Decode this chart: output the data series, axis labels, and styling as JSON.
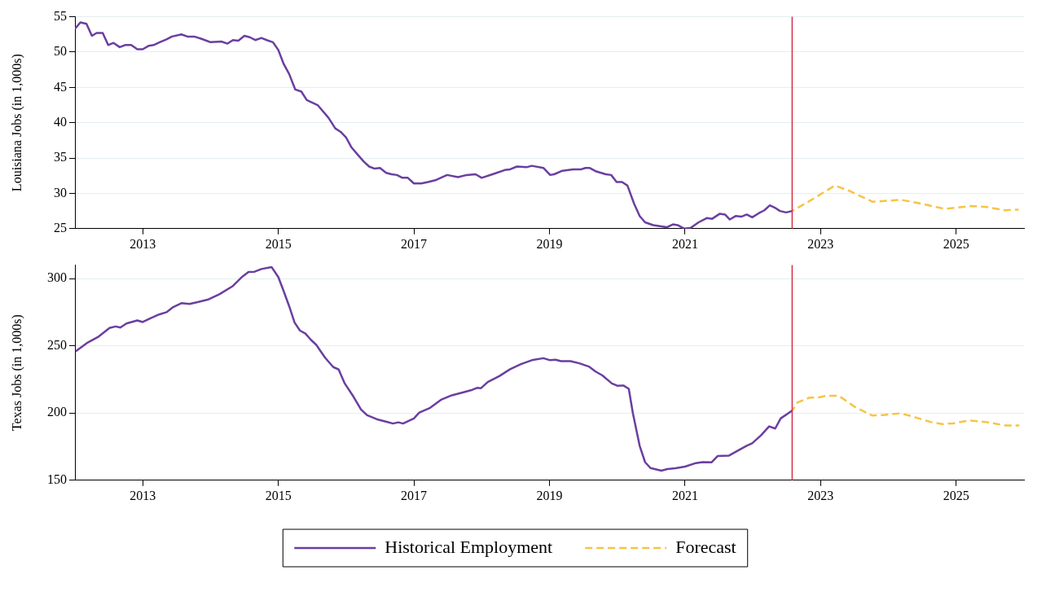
{
  "chart_data": [
    {
      "type": "line",
      "ylabel": "Louisiana Jobs (in 1,000s)",
      "xlim": [
        2012,
        2026
      ],
      "xticks": [
        2013,
        2015,
        2017,
        2019,
        2021,
        2023,
        2025
      ],
      "ylim": [
        25,
        55
      ],
      "yticks": [
        25,
        30,
        35,
        40,
        45,
        50,
        55
      ],
      "grid": "y",
      "legend": false,
      "marker": "none",
      "ref_lines": [
        {
          "axis": "x",
          "value": 2022.58,
          "color": "#d42e4a"
        }
      ],
      "series": [
        {
          "color": "#6a3fa0",
          "line_style": "solid",
          "x": [
            2012.0,
            2012.08,
            2012.17,
            2012.25,
            2012.32,
            2012.41,
            2012.49,
            2012.57,
            2012.66,
            2012.74,
            2012.83,
            2012.92,
            2013.0,
            2013.09,
            2013.16,
            2013.25,
            2013.35,
            2013.43,
            2013.57,
            2013.66,
            2013.76,
            2013.86,
            2014.0,
            2014.16,
            2014.25,
            2014.33,
            2014.41,
            2014.5,
            2014.58,
            2014.66,
            2014.75,
            2014.83,
            2014.92,
            2015.0,
            2015.08,
            2015.16,
            2015.25,
            2015.34,
            2015.42,
            2015.58,
            2015.74,
            2015.84,
            2015.92,
            2016.0,
            2016.08,
            2016.16,
            2016.26,
            2016.34,
            2016.42,
            2016.5,
            2016.59,
            2016.67,
            2016.75,
            2016.83,
            2016.91,
            2017.0,
            2017.11,
            2017.21,
            2017.33,
            2017.49,
            2017.65,
            2017.78,
            2017.91,
            2018.0,
            2018.16,
            2018.34,
            2018.42,
            2018.52,
            2018.66,
            2018.74,
            2018.91,
            2019.01,
            2019.07,
            2019.19,
            2019.35,
            2019.47,
            2019.53,
            2019.59,
            2019.69,
            2019.83,
            2019.91,
            2019.99,
            2020.07,
            2020.15,
            2020.25,
            2020.33,
            2020.41,
            2020.53,
            2020.73,
            2020.82,
            2020.89,
            2020.99,
            2021.08,
            2021.2,
            2021.32,
            2021.4,
            2021.51,
            2021.59,
            2021.66,
            2021.75,
            2021.83,
            2021.91,
            2021.99,
            2022.09,
            2022.17,
            2022.25,
            2022.32,
            2022.4,
            2022.49,
            2022.58
          ],
          "values": [
            53.3,
            54.2,
            54.0,
            52.3,
            52.7,
            52.7,
            51.0,
            51.3,
            50.7,
            51.0,
            51.0,
            50.4,
            50.4,
            50.9,
            51.0,
            51.4,
            51.8,
            52.2,
            52.5,
            52.2,
            52.2,
            51.9,
            51.4,
            51.5,
            51.2,
            51.7,
            51.6,
            52.3,
            52.1,
            51.7,
            52.0,
            51.7,
            51.4,
            50.3,
            48.3,
            46.9,
            44.7,
            44.4,
            43.2,
            42.5,
            40.7,
            39.2,
            38.7,
            37.9,
            36.5,
            35.6,
            34.5,
            33.8,
            33.5,
            33.6,
            32.9,
            32.7,
            32.6,
            32.2,
            32.2,
            31.4,
            31.4,
            31.6,
            31.9,
            32.6,
            32.3,
            32.6,
            32.7,
            32.2,
            32.7,
            33.3,
            33.4,
            33.8,
            33.7,
            33.9,
            33.6,
            32.6,
            32.7,
            33.2,
            33.4,
            33.4,
            33.6,
            33.6,
            33.1,
            32.7,
            32.6,
            31.6,
            31.6,
            31.1,
            28.5,
            26.8,
            25.9,
            25.5,
            25.2,
            25.6,
            25.5,
            25.0,
            25.1,
            25.9,
            26.5,
            26.4,
            27.1,
            27.0,
            26.3,
            26.8,
            26.7,
            27.0,
            26.6,
            27.2,
            27.6,
            28.3,
            28.0,
            27.5,
            27.3,
            27.5
          ]
        },
        {
          "color": "#f6c445",
          "line_style": "dashed",
          "x": [
            2022.58,
            2022.85,
            2023.21,
            2023.41,
            2023.77,
            2024.18,
            2024.5,
            2024.83,
            2025.23,
            2025.43,
            2025.72,
            2025.92
          ],
          "values": [
            27.5,
            29.0,
            31.1,
            30.4,
            28.8,
            29.1,
            28.5,
            27.8,
            28.2,
            28.1,
            27.6,
            27.7
          ]
        }
      ]
    },
    {
      "type": "line",
      "ylabel": "Texas Jobs (in 1,000s)",
      "xlim": [
        2012,
        2026
      ],
      "xticks": [
        2013,
        2015,
        2017,
        2019,
        2021,
        2023,
        2025
      ],
      "ylim": [
        150,
        310
      ],
      "yticks": [
        150,
        200,
        250,
        300
      ],
      "grid": "y",
      "legend": "bottom",
      "marker": "none",
      "ref_lines": [
        {
          "axis": "x",
          "value": 2022.58,
          "color": "#d42e4a"
        }
      ],
      "series": [
        {
          "name": "Historical Employment",
          "color": "#6a3fa0",
          "line_style": "solid",
          "x": [
            2012.01,
            2012.19,
            2012.35,
            2012.51,
            2012.6,
            2012.67,
            2012.76,
            2012.92,
            2013.0,
            2013.12,
            2013.24,
            2013.35,
            2013.45,
            2013.57,
            2013.69,
            2013.81,
            2013.97,
            2014.13,
            2014.33,
            2014.47,
            2014.56,
            2014.65,
            2014.75,
            2014.9,
            2015.0,
            2015.08,
            2015.16,
            2015.24,
            2015.32,
            2015.4,
            2015.48,
            2015.56,
            2015.69,
            2015.81,
            2015.89,
            2015.98,
            2016.11,
            2016.22,
            2016.31,
            2016.47,
            2016.61,
            2016.69,
            2016.77,
            2016.84,
            2017.0,
            2017.08,
            2017.24,
            2017.4,
            2017.56,
            2017.73,
            2017.84,
            2017.93,
            2017.99,
            2018.09,
            2018.26,
            2018.42,
            2018.58,
            2018.74,
            2018.91,
            2019.01,
            2019.09,
            2019.17,
            2019.31,
            2019.44,
            2019.58,
            2019.68,
            2019.78,
            2019.92,
            2020.0,
            2020.09,
            2020.17,
            2020.23,
            2020.33,
            2020.41,
            2020.49,
            2020.65,
            2020.74,
            2020.86,
            2021.0,
            2021.16,
            2021.26,
            2021.39,
            2021.48,
            2021.65,
            2021.79,
            2021.91,
            2021.99,
            2022.12,
            2022.24,
            2022.33,
            2022.41,
            2022.58
          ],
          "values": [
            245.9,
            252.5,
            256.9,
            263.3,
            264.4,
            263.6,
            266.6,
            268.9,
            267.7,
            270.6,
            273.3,
            275.0,
            278.8,
            281.7,
            281.2,
            282.5,
            284.5,
            288.3,
            294.5,
            301.5,
            304.9,
            305.1,
            307.1,
            308.6,
            301.1,
            290.5,
            279.5,
            267.3,
            261.3,
            259.1,
            254.5,
            250.7,
            241.2,
            234.2,
            232.4,
            222.0,
            212.1,
            202.6,
            198.4,
            195.1,
            193.3,
            192.2,
            193.1,
            192.2,
            196.0,
            200.4,
            203.9,
            209.9,
            213.2,
            215.4,
            216.9,
            218.7,
            218.5,
            223.1,
            227.5,
            232.6,
            236.4,
            239.3,
            240.8,
            239.3,
            239.7,
            238.6,
            238.6,
            237.0,
            234.6,
            230.9,
            228.0,
            222.0,
            220.3,
            220.5,
            218.0,
            200.0,
            175.7,
            163.5,
            159.1,
            157.1,
            158.4,
            158.9,
            160.2,
            162.8,
            163.5,
            163.3,
            168.0,
            168.4,
            172.4,
            175.7,
            177.5,
            183.4,
            190.1,
            188.5,
            196.0,
            201.8
          ]
        },
        {
          "name": "Forecast",
          "color": "#f6c445",
          "line_style": "dashed",
          "x": [
            2022.58,
            2022.66,
            2022.84,
            2022.96,
            2023.08,
            2023.27,
            2023.51,
            2023.76,
            2023.92,
            2024.17,
            2024.33,
            2024.62,
            2024.79,
            2024.95,
            2025.19,
            2025.43,
            2025.73,
            2025.93
          ],
          "values": [
            201.8,
            207.9,
            211.5,
            211.5,
            212.8,
            212.8,
            204.4,
            198.2,
            198.5,
            199.8,
            197.8,
            193.4,
            191.8,
            192.3,
            194.5,
            193.4,
            190.7,
            190.7
          ]
        }
      ]
    }
  ]
}
